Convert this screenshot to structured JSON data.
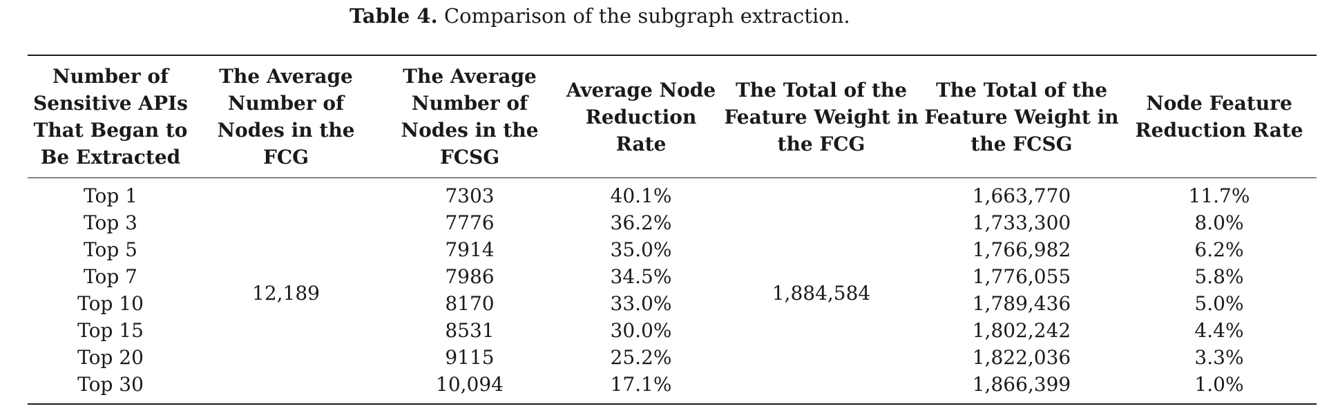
{
  "caption": {
    "label": "Table 4.",
    "text": " Comparison of the subgraph extraction."
  },
  "table": {
    "headers": [
      "Number of Sensitive APIs That Began to Be Extracted",
      "The Average Number of Nodes in the FCG",
      "The Average Number of Nodes in the FCSG",
      "Average Node Reduction Rate",
      "The Total of the Feature Weight in the FCG",
      "The Total of the Feature Weight in the FCSG",
      "Node Feature Reduction Rate"
    ],
    "merged": {
      "avg_nodes_fcg": "12,189",
      "total_weight_fcg": "1,884,584"
    },
    "rows": [
      {
        "top": "Top 1",
        "nodes_fcsg": "7303",
        "node_rate": "40.1%",
        "weight_fcsg": "1,663,770",
        "feature_rate": "11.7%"
      },
      {
        "top": "Top 3",
        "nodes_fcsg": "7776",
        "node_rate": "36.2%",
        "weight_fcsg": "1,733,300",
        "feature_rate": "8.0%"
      },
      {
        "top": "Top 5",
        "nodes_fcsg": "7914",
        "node_rate": "35.0%",
        "weight_fcsg": "1,766,982",
        "feature_rate": "6.2%"
      },
      {
        "top": "Top 7",
        "nodes_fcsg": "7986",
        "node_rate": "34.5%",
        "weight_fcsg": "1,776,055",
        "feature_rate": "5.8%"
      },
      {
        "top": "Top 10",
        "nodes_fcsg": "8170",
        "node_rate": "33.0%",
        "weight_fcsg": "1,789,436",
        "feature_rate": "5.0%"
      },
      {
        "top": "Top 15",
        "nodes_fcsg": "8531",
        "node_rate": "30.0%",
        "weight_fcsg": "1,802,242",
        "feature_rate": "4.4%"
      },
      {
        "top": "Top 20",
        "nodes_fcsg": "9115",
        "node_rate": "25.2%",
        "weight_fcsg": "1,822,036",
        "feature_rate": "3.3%"
      },
      {
        "top": "Top 30",
        "nodes_fcsg": "10,094",
        "node_rate": "17.1%",
        "weight_fcsg": "1,866,399",
        "feature_rate": "1.0%"
      }
    ]
  }
}
